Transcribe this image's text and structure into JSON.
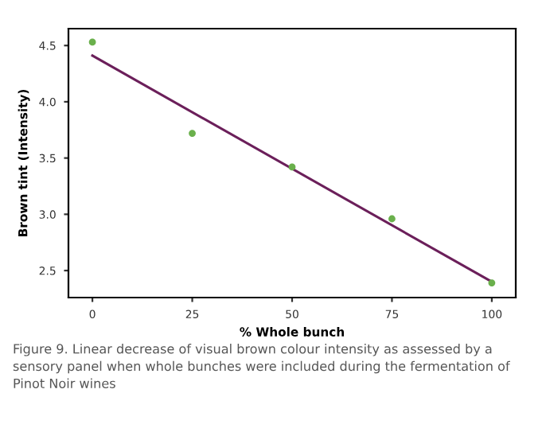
{
  "chart_data": {
    "type": "scatter",
    "xlabel": "% Whole bunch",
    "ylabel": "Brown tint (Intensity)",
    "series": [
      {
        "color": "#6ab04c",
        "marker": "circle",
        "x": [
          0,
          25,
          50,
          75,
          100
        ],
        "values": [
          4.53,
          3.72,
          3.42,
          2.96,
          2.39
        ]
      },
      {
        "type": "line",
        "color": "#6b1f5a",
        "marker": "none",
        "x": [
          0,
          100
        ],
        "values": [
          4.41,
          2.4
        ]
      }
    ],
    "xlim": [
      -6,
      106
    ],
    "ylim": [
      2.26,
      4.65
    ],
    "xticks": [
      0,
      25,
      50,
      75,
      100
    ],
    "yticks": [
      2.5,
      {
        "value": 3,
        "label": "3.0"
      },
      3.5,
      {
        "value": 4,
        "label": "4.0"
      },
      4.5
    ],
    "grid": false,
    "legend": false,
    "annotations": [
      "Figure 9. Linear decrease of visual brown colour intensity as assessed by a sensory panel when whole bunches were included during the fermentation of Pinot Noir wines"
    ]
  }
}
